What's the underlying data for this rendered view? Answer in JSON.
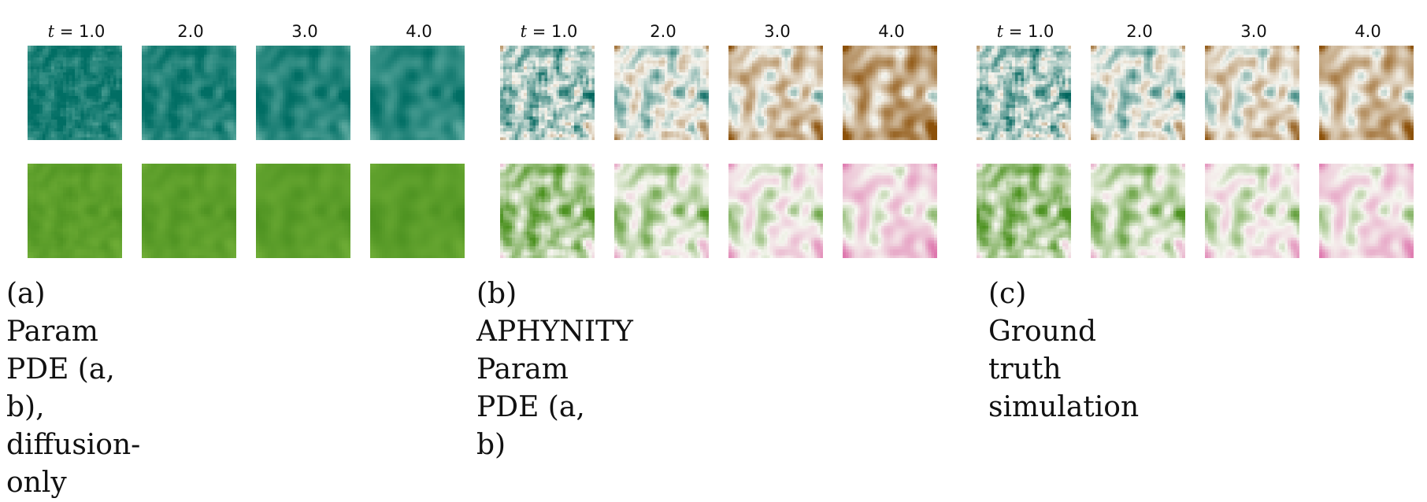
{
  "time_labels": [
    "t = 1.0",
    "2.0",
    "3.0",
    "4.0"
  ],
  "panels": [
    {
      "id": "a",
      "caption_line1": "(a) Param PDE (a, b), diffusion-",
      "caption_line2": "only",
      "rows": [
        {
          "colormap": "teal",
          "tint": [
            0.82,
            0.78,
            0.74,
            0.7
          ]
        },
        {
          "colormap": "green",
          "tint": [
            0.62,
            0.63,
            0.64,
            0.66
          ]
        }
      ]
    },
    {
      "id": "b",
      "caption_line1": "(b) APHYNITY Param PDE (a,",
      "caption_line2": "b)",
      "rows": [
        {
          "colormap": "teal-brown",
          "tint": [
            0.3,
            0.05,
            -0.25,
            -0.5
          ]
        },
        {
          "colormap": "green-pink",
          "tint": [
            0.45,
            0.2,
            -0.05,
            -0.25
          ]
        }
      ]
    },
    {
      "id": "c",
      "caption_line1": "(c) Ground truth simulation",
      "caption_line2": "",
      "rows": [
        {
          "colormap": "teal-brown",
          "tint": [
            0.3,
            0.1,
            -0.15,
            -0.35
          ]
        },
        {
          "colormap": "green-pink",
          "tint": [
            0.45,
            0.25,
            0.0,
            -0.2
          ]
        }
      ]
    }
  ]
}
